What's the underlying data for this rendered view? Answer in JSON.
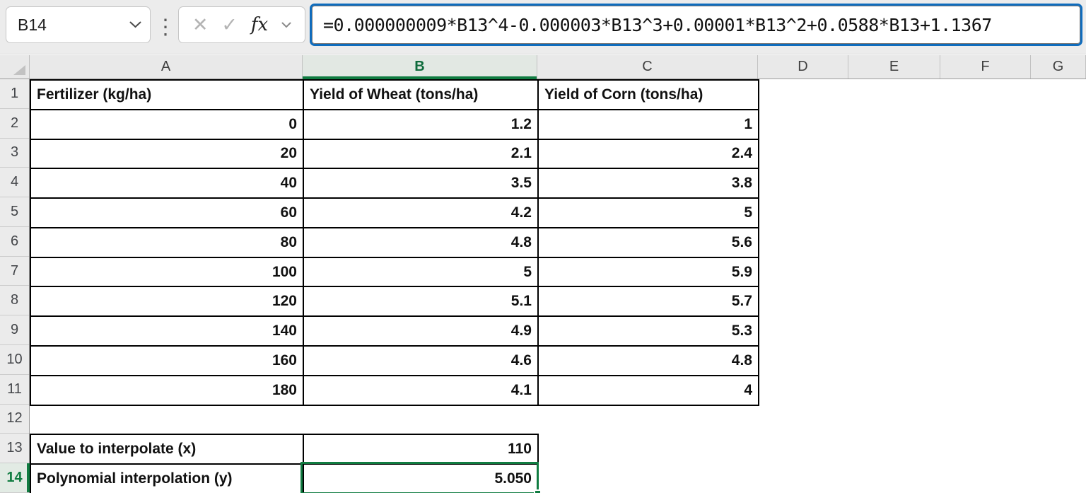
{
  "toolbar": {
    "name_box_value": "B14",
    "menu_dots_glyph": "⋮",
    "cancel_glyph": "✕",
    "confirm_glyph": "✓",
    "fx_label": "fx",
    "formula": "=0.000000009*B13^4-0.000003*B13^3+0.00001*B13^2+0.0588*B13+1.1367"
  },
  "sheet": {
    "column_headers": [
      "A",
      "B",
      "C",
      "D",
      "E",
      "F",
      "G"
    ],
    "row_headers": [
      "1",
      "2",
      "3",
      "4",
      "5",
      "6",
      "7",
      "8",
      "9",
      "10",
      "11",
      "12",
      "13",
      "14"
    ],
    "selected_column": "B",
    "selected_row": "14",
    "active_cell": "B14",
    "data_table": {
      "headers": [
        "Fertilizer (kg/ha)",
        "Yield of Wheat (tons/ha)",
        "Yield of Corn (tons/ha)"
      ],
      "rows": [
        [
          "0",
          "1.2",
          "1"
        ],
        [
          "20",
          "2.1",
          "2.4"
        ],
        [
          "40",
          "3.5",
          "3.8"
        ],
        [
          "60",
          "4.2",
          "5"
        ],
        [
          "80",
          "4.8",
          "5.6"
        ],
        [
          "100",
          "5",
          "5.9"
        ],
        [
          "120",
          "5.1",
          "5.7"
        ],
        [
          "140",
          "4.9",
          "5.3"
        ],
        [
          "160",
          "4.6",
          "4.8"
        ],
        [
          "180",
          "4.1",
          "4"
        ]
      ]
    },
    "interpolation": {
      "x_label": "Value to interpolate (x)",
      "x_value": "110",
      "y_label": "Polynomial interpolation (y)",
      "y_value": "5.050"
    }
  },
  "colors": {
    "accent_green": "#107C41",
    "focus_blue": "#0F6CBD",
    "label_cell_bg": "#DBDBDB",
    "border_black": "#000000"
  }
}
